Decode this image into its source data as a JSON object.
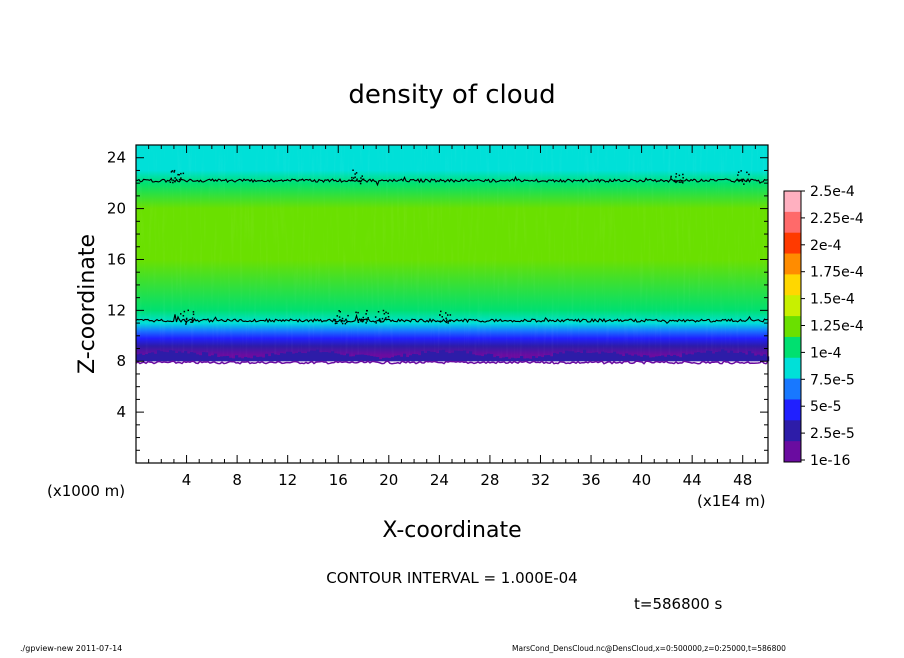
{
  "chart_data": {
    "type": "heatmap",
    "title": "density of cloud",
    "xlabel": "X-coordinate",
    "ylabel": "Z-coordinate",
    "x_unit_label": "(x1E4 m)",
    "y_unit_label": "(x1000 m)",
    "xlim": [
      0,
      50
    ],
    "ylim": [
      0,
      25
    ],
    "x_ticks": [
      4,
      8,
      12,
      16,
      20,
      24,
      28,
      32,
      36,
      40,
      44,
      48
    ],
    "y_ticks": [
      4,
      8,
      12,
      16,
      20,
      24
    ],
    "colorbar": {
      "labels": [
        "2.5e-4",
        "2.25e-4",
        "2e-4",
        "1.75e-4",
        "1.5e-4",
        "1.25e-4",
        "1e-4",
        "7.5e-5",
        "5e-5",
        "2.5e-5",
        "1e-16"
      ],
      "colors": [
        "#ffb0c0",
        "#ff6a6a",
        "#ff3a00",
        "#ff8c00",
        "#ffd700",
        "#c8f000",
        "#6ae000",
        "#00e070",
        "#00e0d8",
        "#1878ff",
        "#2020ff",
        "#2d1ca8",
        "#6a0ca0"
      ]
    },
    "field_profile": [
      {
        "z": 8.0,
        "value": 5e-06
      },
      {
        "z": 8.5,
        "value": 1e-05
      },
      {
        "z": 9.2,
        "value": 2.2e-05
      },
      {
        "z": 9.8,
        "value": 4.5e-05
      },
      {
        "z": 10.4,
        "value": 6.5e-05
      },
      {
        "z": 11.0,
        "value": 8.5e-05
      },
      {
        "z": 12.0,
        "value": 0.00011
      },
      {
        "z": 16.0,
        "value": 0.00013
      },
      {
        "z": 20.0,
        "value": 0.000122
      },
      {
        "z": 22.0,
        "value": 0.000105
      },
      {
        "z": 23.0,
        "value": 9e-05
      },
      {
        "z": 25.0,
        "value": 8e-05
      }
    ],
    "contour_levels_z": [
      11.2,
      22.2
    ],
    "contour_interval_label": "CONTOUR INTERVAL = 1.000E-04",
    "time_label": "t=586800 s"
  },
  "footer": {
    "left": "./gpview-new  2011-07-14",
    "right": "MarsCond_DensCloud.nc@DensCloud,x=0:500000,z=0:25000,t=586800"
  }
}
